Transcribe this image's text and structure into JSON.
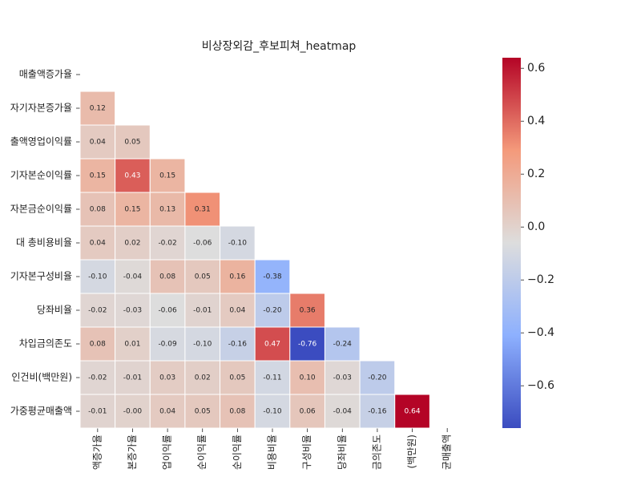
{
  "chart_data": {
    "type": "heatmap",
    "title": "비상장외감_후보피쳐_heatmap",
    "row_labels": [
      "매출액증가율",
      "자기자본증가율",
      "출액영업이익률",
      "기자본순이익률",
      "자본금순이익률",
      "대 총비용비율",
      "기자본구성비율",
      "당좌비율",
      "차입금의존도",
      "인건비(백만원)",
      "가중평균매출액"
    ],
    "col_labels": [
      "액증가율",
      "본증가율",
      "업이익률",
      "순이익률",
      "순이익률",
      "비용비율",
      "구성비율",
      "당좌비율",
      "금의존도",
      "(백만원)",
      "균매출액"
    ],
    "values": [
      [
        null,
        null,
        null,
        null,
        null,
        null,
        null,
        null,
        null,
        null,
        null
      ],
      [
        0.12,
        null,
        null,
        null,
        null,
        null,
        null,
        null,
        null,
        null,
        null
      ],
      [
        0.04,
        0.05,
        null,
        null,
        null,
        null,
        null,
        null,
        null,
        null,
        null
      ],
      [
        0.15,
        0.43,
        0.15,
        null,
        null,
        null,
        null,
        null,
        null,
        null,
        null
      ],
      [
        0.08,
        0.15,
        0.13,
        0.31,
        null,
        null,
        null,
        null,
        null,
        null,
        null
      ],
      [
        0.04,
        0.02,
        -0.02,
        -0.06,
        -0.1,
        null,
        null,
        null,
        null,
        null,
        null
      ],
      [
        -0.1,
        -0.04,
        0.08,
        0.05,
        0.16,
        -0.38,
        null,
        null,
        null,
        null,
        null
      ],
      [
        -0.02,
        -0.03,
        -0.06,
        -0.01,
        0.04,
        -0.2,
        0.36,
        null,
        null,
        null,
        null
      ],
      [
        0.08,
        0.01,
        -0.09,
        -0.1,
        -0.16,
        0.47,
        -0.76,
        -0.24,
        null,
        null,
        null
      ],
      [
        -0.02,
        -0.01,
        0.03,
        0.02,
        0.05,
        -0.11,
        0.1,
        -0.03,
        -0.2,
        null,
        null
      ],
      [
        -0.01,
        -0.0,
        0.04,
        0.05,
        0.08,
        -0.1,
        0.06,
        -0.04,
        -0.16,
        0.64,
        null
      ]
    ],
    "value_labels": [
      [
        null,
        null,
        null,
        null,
        null,
        null,
        null,
        null,
        null,
        null,
        null
      ],
      [
        "0.12",
        null,
        null,
        null,
        null,
        null,
        null,
        null,
        null,
        null,
        null
      ],
      [
        "0.04",
        "0.05",
        null,
        null,
        null,
        null,
        null,
        null,
        null,
        null,
        null
      ],
      [
        "0.15",
        "0.43",
        "0.15",
        null,
        null,
        null,
        null,
        null,
        null,
        null,
        null
      ],
      [
        "0.08",
        "0.15",
        "0.13",
        "0.31",
        null,
        null,
        null,
        null,
        null,
        null,
        null
      ],
      [
        "0.04",
        "0.02",
        "-0.02",
        "-0.06",
        "-0.10",
        null,
        null,
        null,
        null,
        null,
        null
      ],
      [
        "-0.10",
        "-0.04",
        "0.08",
        "0.05",
        "0.16",
        "-0.38",
        null,
        null,
        null,
        null,
        null
      ],
      [
        "-0.02",
        "-0.03",
        "-0.06",
        "-0.01",
        "0.04",
        "-0.20",
        "0.36",
        null,
        null,
        null,
        null
      ],
      [
        "0.08",
        "0.01",
        "-0.09",
        "-0.10",
        "-0.16",
        "0.47",
        "-0.76",
        "-0.24",
        null,
        null,
        null
      ],
      [
        "-0.02",
        "-0.01",
        "0.03",
        "0.02",
        "0.05",
        "-0.11",
        "0.10",
        "-0.03",
        "-0.20",
        null,
        null
      ],
      [
        "-0.01",
        "-0.00",
        "0.04",
        "0.05",
        "0.08",
        "-0.10",
        "0.06",
        "-0.04",
        "-0.16",
        "0.64",
        null
      ]
    ],
    "colormap": "coolwarm",
    "colorbar_lim": [
      -0.76,
      0.64
    ],
    "colorbar_ticks": [
      {
        "value": -0.6,
        "label": "−0.6"
      },
      {
        "value": -0.4,
        "label": "−0.4"
      },
      {
        "value": -0.2,
        "label": "−0.2"
      },
      {
        "value": 0,
        "label": "0.0"
      },
      0.2,
      0.4,
      0.6
    ]
  }
}
